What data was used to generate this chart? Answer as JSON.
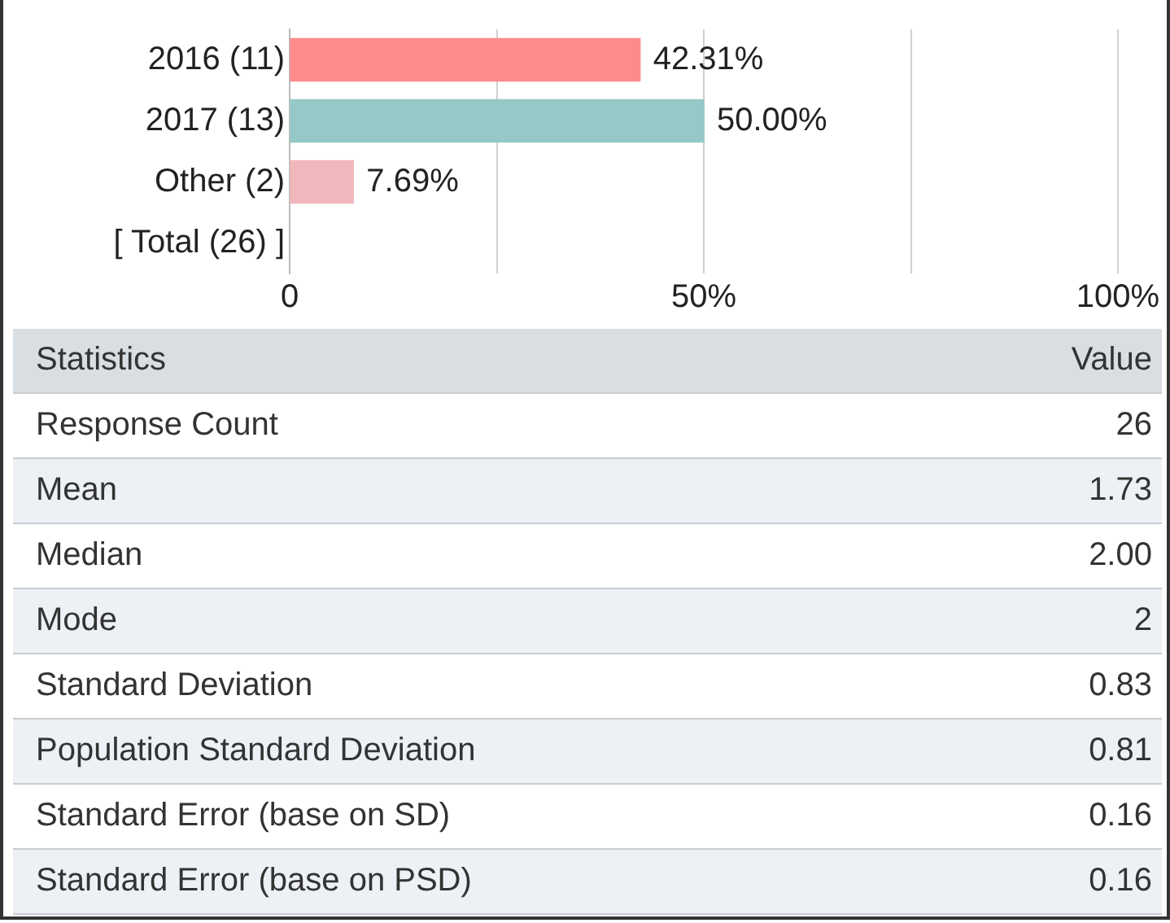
{
  "chart_data": [
    {
      "type": "bar",
      "orientation": "horizontal",
      "categories": [
        "2016 (11)",
        "2017 (13)",
        "Other (2)",
        "[ Total (26) ]"
      ],
      "values": [
        42.31,
        50.0,
        7.69,
        null
      ],
      "colors": [
        "#ff8a8a",
        "#96c8c8",
        "#f0b8bc",
        "#cccccc"
      ],
      "value_labels": [
        "42.31%",
        "50.00%",
        "7.69%",
        null
      ],
      "xlim": [
        0,
        100
      ],
      "xticks": [
        {
          "value": 0,
          "label": "0"
        },
        {
          "value": 25,
          "label": null
        },
        {
          "value": 50,
          "label": "50%"
        },
        {
          "value": 75,
          "label": null
        },
        {
          "value": 100,
          "label": "100%"
        }
      ],
      "grid": "x",
      "legend": false
    },
    {
      "type": "other",
      "annotations": [
        "Statistics",
        "Value",
        "Response Count",
        "26",
        "Mean",
        "1.73",
        "Median",
        "2.00",
        "Mode",
        "2",
        "Standard Deviation",
        "0.83",
        "Population Standard Deviation",
        "0.81",
        "Standard Error (base on SD)",
        "0.16",
        "Standard Error (base on PSD)",
        "0.16"
      ]
    }
  ]
}
